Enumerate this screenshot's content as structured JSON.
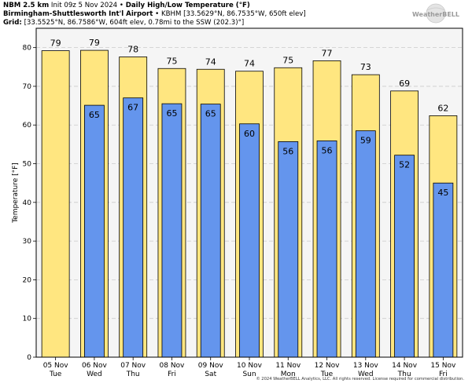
{
  "header": {
    "line1_bold": "NBM 2.5 km",
    "line1_init": "Init 09z 5 Nov 2024",
    "line1_sep": "•",
    "line1_title": "Daily High/Low Temperature (°F)",
    "line2_bold": "Birmingham-Shuttlesworth Int'l Airport",
    "line2_sep": "•",
    "line2_rest": "KBHM [33.5629°N, 86.7535°W, 650ft elev]",
    "line3_bold": "Grid:",
    "line3_rest": "[33.5525°N, 86.7586°W, 604ft elev, 0.78mi to the SSW (202.3)°]"
  },
  "logo": {
    "text": "WeatherBELL"
  },
  "footer": {
    "text": "© 2024 WeatherBELL Analytics, LLC. All rights reserved. License required for commercial distribution."
  },
  "colors": {
    "high": "#ffe680",
    "low": "#6495ed",
    "plot_bg": "#f5f5f5",
    "grid": "#cccccc"
  },
  "chart_data": {
    "type": "bar",
    "title": "Daily High/Low Temperature (°F)",
    "xlabel": "",
    "ylabel": "Temperature [°F]",
    "ylim": [
      0,
      85
    ],
    "yticks": [
      0,
      10,
      20,
      30,
      40,
      50,
      60,
      70,
      80
    ],
    "grid": true,
    "categories": [
      {
        "date": "05 Nov",
        "day": "Tue"
      },
      {
        "date": "06 Nov",
        "day": "Wed"
      },
      {
        "date": "07 Nov",
        "day": "Thu"
      },
      {
        "date": "08 Nov",
        "day": "Fri"
      },
      {
        "date": "09 Nov",
        "day": "Sat"
      },
      {
        "date": "10 Nov",
        "day": "Sun"
      },
      {
        "date": "11 Nov",
        "day": "Mon"
      },
      {
        "date": "12 Nov",
        "day": "Tue"
      },
      {
        "date": "13 Nov",
        "day": "Wed"
      },
      {
        "date": "14 Nov",
        "day": "Thu"
      },
      {
        "date": "15 Nov",
        "day": "Fri"
      }
    ],
    "series": [
      {
        "name": "High",
        "values": [
          79,
          79,
          78,
          75,
          74,
          74,
          75,
          77,
          73,
          69,
          62
        ],
        "plotted": [
          79.2,
          79.3,
          77.6,
          74.6,
          74.4,
          73.9,
          74.8,
          76.6,
          73.0,
          68.8,
          62.4
        ],
        "labels": [
          "79",
          "79",
          "78",
          "75",
          "74",
          "74",
          "75",
          "77",
          "73",
          "69",
          "62"
        ]
      },
      {
        "name": "Low",
        "values": [
          null,
          65,
          67,
          65,
          65,
          60,
          56,
          56,
          59,
          52,
          45
        ],
        "plotted": [
          null,
          65.1,
          67.0,
          65.5,
          65.4,
          60.3,
          55.7,
          55.9,
          58.5,
          52.2,
          45.0
        ],
        "labels": [
          "",
          "65",
          "67",
          "65",
          "65",
          "60",
          "56",
          "56",
          "59",
          "52",
          "45"
        ]
      }
    ]
  }
}
